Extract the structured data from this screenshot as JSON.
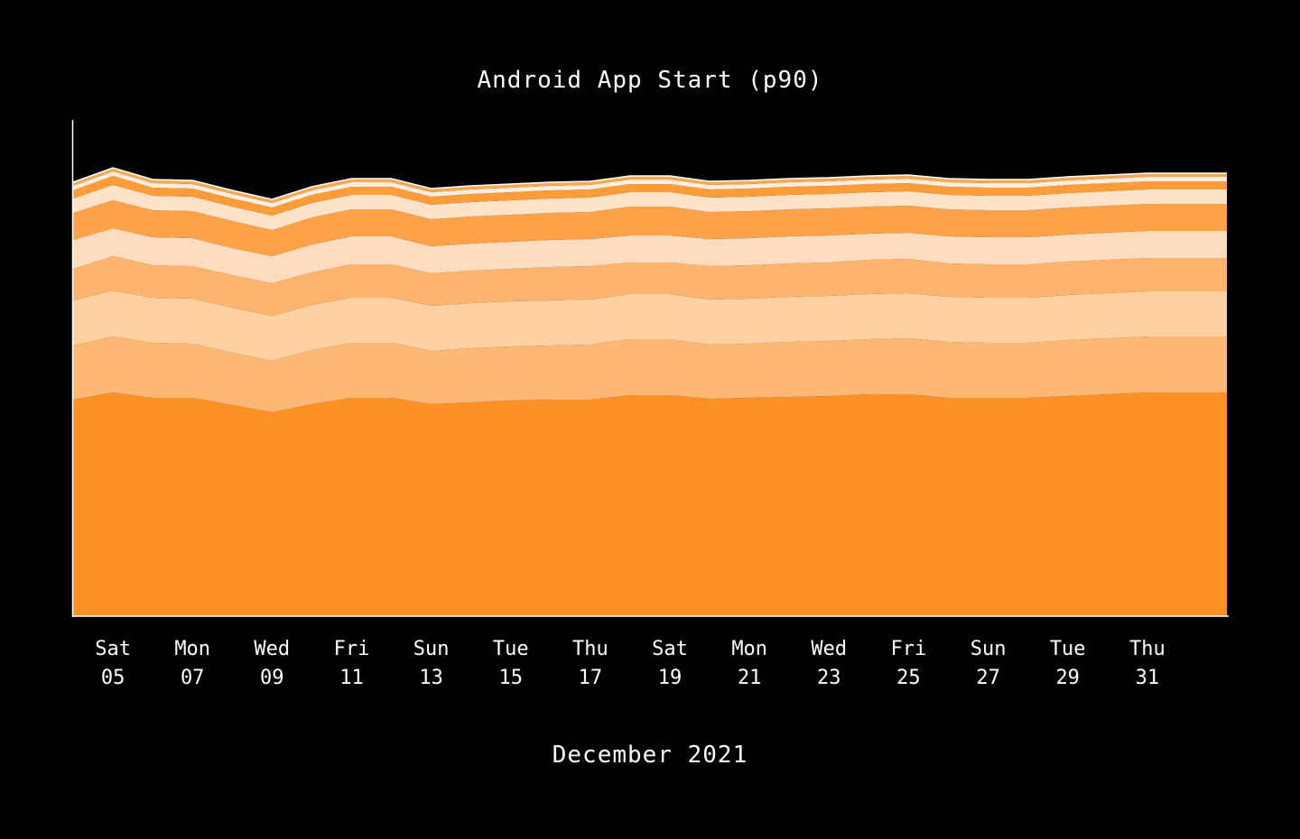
{
  "chart_data": {
    "type": "area",
    "stacked": true,
    "title": "Android App Start (p90)",
    "xlabel": "December 2021",
    "ylabel": "",
    "grid": false,
    "legend": "none",
    "x": [
      "Dec 04",
      "Dec 05",
      "Dec 06",
      "Dec 07",
      "Dec 08",
      "Dec 09",
      "Dec 10",
      "Dec 11",
      "Dec 12",
      "Dec 13",
      "Dec 14",
      "Dec 15",
      "Dec 16",
      "Dec 17",
      "Dec 18",
      "Dec 19",
      "Dec 20",
      "Dec 21",
      "Dec 22",
      "Dec 23",
      "Dec 24",
      "Dec 25",
      "Dec 26",
      "Dec 27",
      "Dec 28",
      "Dec 29",
      "Dec 30",
      "Dec 31",
      "Jan 01",
      "Jan 02"
    ],
    "x_ticks": [
      {
        "day": "Sat",
        "date": "05"
      },
      {
        "day": "Mon",
        "date": "07"
      },
      {
        "day": "Wed",
        "date": "09"
      },
      {
        "day": "Fri",
        "date": "11"
      },
      {
        "day": "Sun",
        "date": "13"
      },
      {
        "day": "Tue",
        "date": "15"
      },
      {
        "day": "Thu",
        "date": "17"
      },
      {
        "day": "Sat",
        "date": "19"
      },
      {
        "day": "Mon",
        "date": "21"
      },
      {
        "day": "Wed",
        "date": "23"
      },
      {
        "day": "Fri",
        "date": "25"
      },
      {
        "day": "Sun",
        "date": "27"
      },
      {
        "day": "Tue",
        "date": "29"
      },
      {
        "day": "Thu",
        "date": "31"
      }
    ],
    "ylim": [
      0,
      550
    ],
    "series": [
      {
        "color": "#fe9126",
        "values": [
          240,
          248,
          242,
          242,
          234,
          226,
          235,
          242,
          242,
          235,
          237,
          239,
          240,
          240,
          245,
          245,
          241,
          242,
          243,
          244,
          246,
          246,
          242,
          242,
          242,
          244,
          246,
          248,
          248,
          248
        ]
      },
      {
        "color": "#ffb774",
        "values": [
          60,
          62,
          61,
          60,
          58,
          57,
          60,
          61,
          61,
          59,
          60,
          60,
          60,
          61,
          62,
          62,
          60,
          60,
          61,
          61,
          61,
          62,
          62,
          61,
          61,
          62,
          62,
          62,
          62,
          62
        ]
      },
      {
        "color": "#ffd0a1",
        "values": [
          50,
          51,
          50,
          50,
          50,
          50,
          50,
          50,
          50,
          50,
          50,
          50,
          50,
          50,
          50,
          50,
          50,
          50,
          50,
          50,
          50,
          50,
          50,
          50,
          50,
          50,
          50,
          50,
          50,
          50
        ]
      },
      {
        "color": "#ffb46e",
        "values": [
          35,
          38,
          36,
          36,
          36,
          36,
          36,
          37,
          37,
          36,
          36,
          36,
          37,
          37,
          35,
          35,
          37,
          37,
          37,
          37,
          38,
          38,
          37,
          37,
          37,
          37,
          37,
          37,
          37,
          37
        ]
      },
      {
        "color": "#ffdcbd",
        "values": [
          32,
          31,
          31,
          31,
          30,
          30,
          31,
          31,
          31,
          30,
          30,
          30,
          30,
          30,
          30,
          30,
          30,
          30,
          30,
          30,
          29,
          29,
          30,
          30,
          30,
          30,
          30,
          30,
          30,
          30
        ]
      },
      {
        "color": "#fea24a",
        "values": [
          30,
          31,
          30,
          30,
          30,
          29,
          30,
          30,
          30,
          30,
          30,
          30,
          30,
          30,
          32,
          32,
          30,
          30,
          30,
          30,
          30,
          30,
          30,
          30,
          30,
          30,
          30,
          30,
          30,
          30
        ]
      },
      {
        "color": "#ffe3c8",
        "values": [
          16,
          17,
          16,
          16,
          16,
          16,
          16,
          16,
          16,
          16,
          16,
          16,
          16,
          16,
          16,
          16,
          16,
          16,
          16,
          16,
          16,
          16,
          16,
          16,
          16,
          16,
          16,
          16,
          16,
          16
        ]
      },
      {
        "color": "#fe9c3a",
        "values": [
          9,
          10,
          9,
          9,
          9,
          9,
          9,
          9,
          9,
          9,
          9,
          9,
          9,
          9,
          9,
          9,
          9,
          9,
          9,
          9,
          9,
          9,
          9,
          9,
          9,
          9,
          9,
          9,
          9,
          9
        ]
      },
      {
        "color": "#ffeedd",
        "values": [
          5,
          5,
          5,
          5,
          5,
          5,
          5,
          5,
          5,
          5,
          5,
          5,
          5,
          5,
          5,
          5,
          5,
          5,
          5,
          5,
          5,
          5,
          5,
          5,
          5,
          5,
          5,
          5,
          5,
          5
        ]
      },
      {
        "color": "#fea850",
        "values": [
          4,
          4,
          4,
          4,
          4,
          4,
          4,
          4,
          4,
          4,
          4,
          4,
          4,
          4,
          4,
          4,
          4,
          4,
          4,
          4,
          4,
          4,
          4,
          4,
          4,
          4,
          4,
          4,
          4,
          4
        ]
      }
    ]
  }
}
